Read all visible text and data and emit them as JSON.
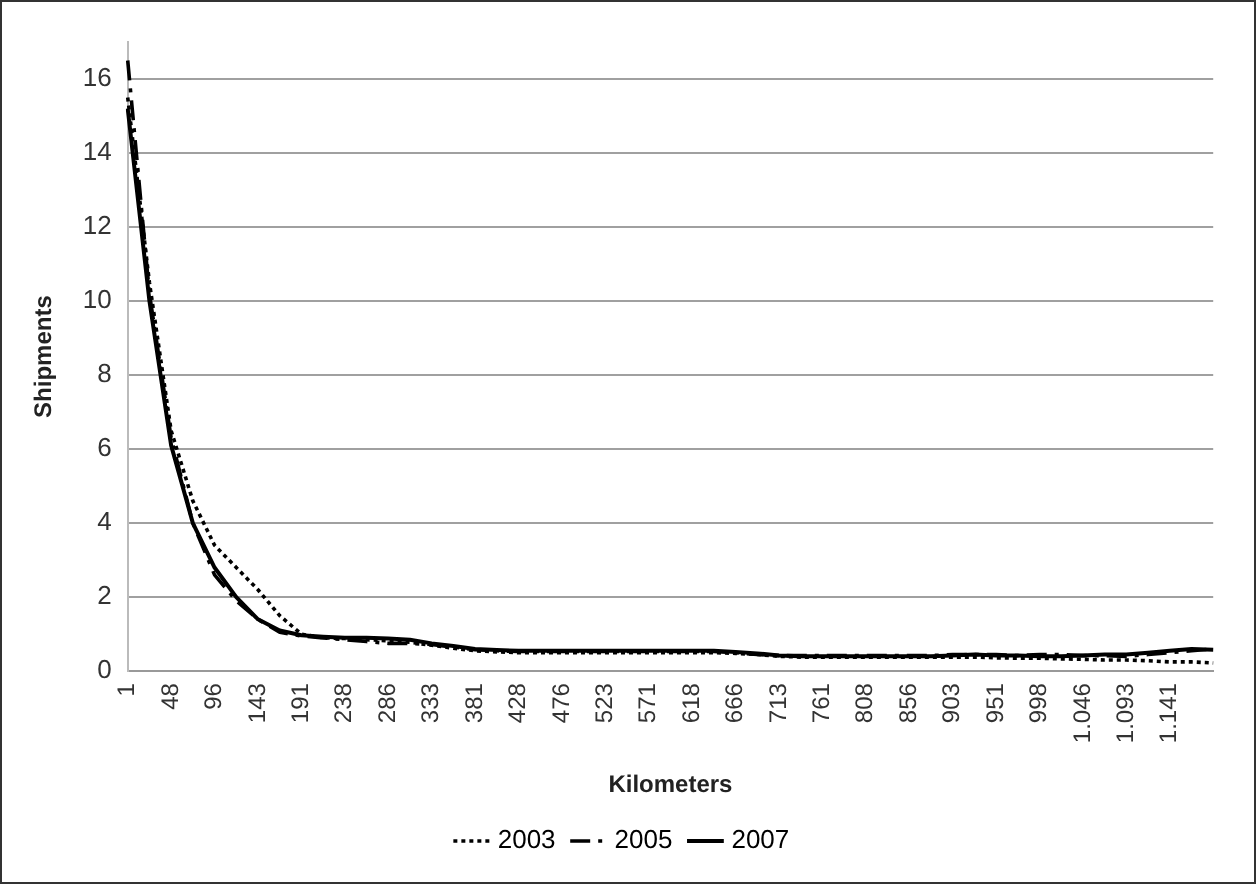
{
  "chart_data": {
    "type": "line",
    "xlabel": "Kilometers",
    "ylabel": "Shipments",
    "categories": [
      "1",
      null,
      "48",
      null,
      "96",
      null,
      "143",
      null,
      "191",
      null,
      "238",
      null,
      "286",
      null,
      "333",
      null,
      "381",
      null,
      "428",
      null,
      "476",
      null,
      "523",
      null,
      "571",
      null,
      "618",
      null,
      "666",
      null,
      "713",
      null,
      "761",
      null,
      "808",
      null,
      "856",
      null,
      "903",
      null,
      "951",
      null,
      "998",
      null,
      "1.046",
      null,
      "1.093",
      null,
      "1.141",
      null,
      null
    ],
    "series": [
      {
        "name": "2003",
        "color": "#000000",
        "line_style": "dotted",
        "values": [
          15.5,
          10.5,
          6.5,
          4.6,
          3.4,
          2.8,
          2.2,
          1.5,
          1.0,
          0.9,
          0.88,
          0.85,
          0.82,
          0.78,
          0.7,
          0.62,
          0.55,
          0.52,
          0.5,
          0.5,
          0.5,
          0.5,
          0.5,
          0.5,
          0.5,
          0.5,
          0.5,
          0.5,
          0.48,
          0.45,
          0.4,
          0.38,
          0.38,
          0.38,
          0.38,
          0.38,
          0.38,
          0.38,
          0.38,
          0.38,
          0.36,
          0.35,
          0.35,
          0.33,
          0.32,
          0.3,
          0.3,
          0.28,
          0.25,
          0.25,
          0.22
        ]
      },
      {
        "name": "2005",
        "color": "#000000",
        "line_style": "dashed",
        "values": [
          16.5,
          10.2,
          6.3,
          4.0,
          2.6,
          1.9,
          1.4,
          1.05,
          0.95,
          0.9,
          0.85,
          0.8,
          0.75,
          0.75,
          0.72,
          0.65,
          0.58,
          0.55,
          0.53,
          0.53,
          0.53,
          0.53,
          0.53,
          0.53,
          0.53,
          0.53,
          0.53,
          0.53,
          0.5,
          0.45,
          0.42,
          0.42,
          0.42,
          0.42,
          0.42,
          0.42,
          0.42,
          0.42,
          0.45,
          0.45,
          0.45,
          0.42,
          0.45,
          0.45,
          0.42,
          0.42,
          0.4,
          0.45,
          0.5,
          0.55,
          0.6
        ]
      },
      {
        "name": "2007",
        "color": "#000000",
        "line_style": "solid",
        "values": [
          15.2,
          10.0,
          6.1,
          4.0,
          2.8,
          2.0,
          1.4,
          1.1,
          0.97,
          0.93,
          0.9,
          0.9,
          0.88,
          0.85,
          0.75,
          0.68,
          0.6,
          0.57,
          0.55,
          0.55,
          0.55,
          0.55,
          0.55,
          0.55,
          0.55,
          0.55,
          0.55,
          0.55,
          0.52,
          0.48,
          0.42,
          0.4,
          0.4,
          0.4,
          0.4,
          0.4,
          0.4,
          0.4,
          0.42,
          0.45,
          0.42,
          0.42,
          0.4,
          0.4,
          0.42,
          0.45,
          0.45,
          0.5,
          0.55,
          0.6,
          0.58
        ]
      }
    ],
    "ylim": [
      0,
      17
    ],
    "yticks": [
      0,
      2,
      4,
      6,
      8,
      10,
      12,
      14,
      16
    ],
    "grid": "y",
    "legend": "bottom",
    "marker": "none"
  }
}
